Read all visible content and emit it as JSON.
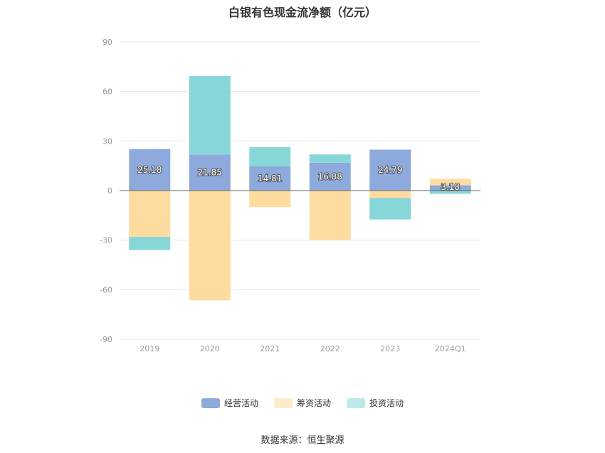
{
  "chart_data": {
    "type": "bar",
    "stacked": true,
    "title": "白银有色现金流净额（亿元）",
    "categories": [
      "2019",
      "2020",
      "2021",
      "2022",
      "2023",
      "2024Q1"
    ],
    "series": [
      {
        "name": "经营活动",
        "color": "#8eaadc",
        "values": [
          25.18,
          21.85,
          14.81,
          16.88,
          24.79,
          3.18
        ]
      },
      {
        "name": "筹资活动",
        "color": "#fedca0",
        "values": [
          -28.0,
          -66.5,
          -10.0,
          -30.0,
          -4.5,
          4.0
        ]
      },
      {
        "name": "投资活动",
        "color": "#87d7d9",
        "values": [
          -8.0,
          47.5,
          11.5,
          5.0,
          -13.0,
          -2.0
        ]
      }
    ],
    "data_labels": [
      "25.18",
      "21.85",
      "14.81",
      "16.88",
      "24.79",
      "3.18"
    ],
    "yticks": [
      90,
      60,
      30,
      0,
      -30,
      -60,
      -90
    ],
    "ylim": [
      -90,
      90
    ],
    "grid": true,
    "legend_position": "bottom"
  },
  "source": "数据来源：恒生聚源"
}
